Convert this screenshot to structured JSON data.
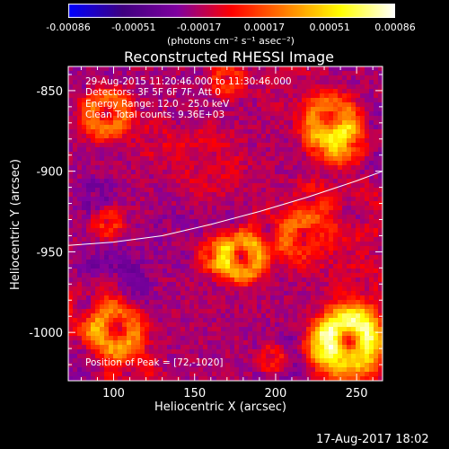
{
  "colorbar": {
    "ticks": [
      "-0.00086",
      "-0.00051",
      "-0.00017",
      "0.00017",
      "0.00051",
      "0.00086"
    ],
    "unit_label": "(photons cm⁻² s⁻¹ asec⁻²)"
  },
  "title": "Reconstructed RHESSI Image",
  "info": {
    "line1": "29-Aug-2015 11:20:46.000 to 11:30:46.000",
    "line2": "Detectors: 3F 5F 6F 7F, Att 0",
    "line3": "Energy Range: 12.0 - 25.0 keV",
    "line4": "Clean    Total counts: 9.36E+03",
    "peak": "Position of Peak = [72,-1020]"
  },
  "footer": {
    "timestamp": "17-Aug-2017 18:02"
  },
  "chart_data": {
    "type": "heatmap",
    "title": "Reconstructed RHESSI Image",
    "xlabel": "Heliocentric X (arcsec)",
    "ylabel": "Heliocentric Y (arcsec)",
    "xlim": [
      72,
      266
    ],
    "ylim": [
      -1030,
      -835
    ],
    "x_ticks": [
      "100",
      "150",
      "200",
      "250"
    ],
    "x_tick_values": [
      100,
      150,
      200,
      250
    ],
    "y_ticks": [
      "-850",
      "-900",
      "-950",
      "-1000"
    ],
    "y_tick_values": [
      -850,
      -900,
      -950,
      -1000
    ],
    "colorbar_range": [
      -0.00086,
      0.00086
    ],
    "colormap": [
      "#0000ff",
      "#400080",
      "#8000a0",
      "#ff0000",
      "#ff8000",
      "#ffff00",
      "#ffffff"
    ],
    "limb_curve": {
      "x": [
        72,
        100,
        130,
        160,
        190,
        220,
        250,
        266
      ],
      "y": [
        -946,
        -944,
        -940,
        -933,
        -925,
        -916,
        -906,
        -900
      ]
    },
    "peak_position": [
      72,
      -1020
    ]
  }
}
